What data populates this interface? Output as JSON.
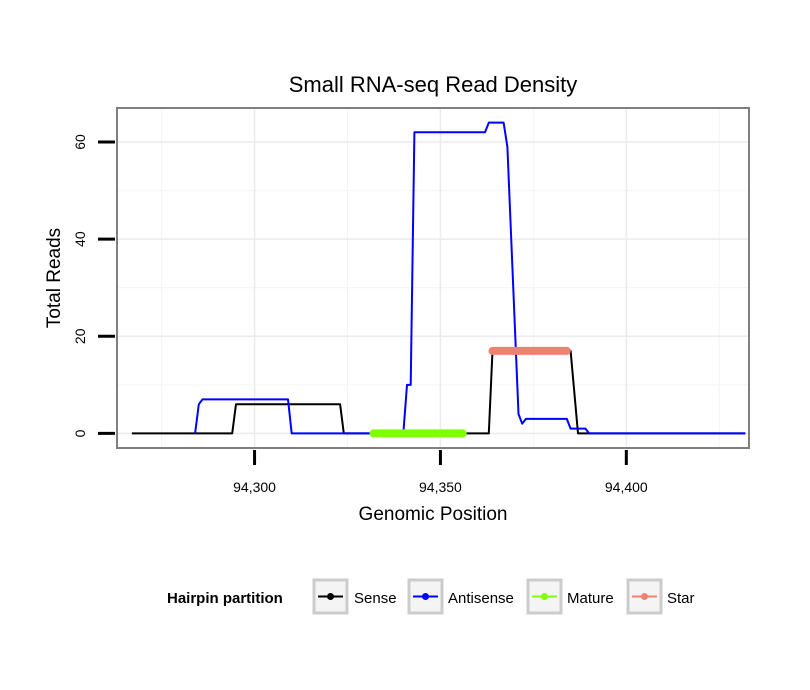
{
  "chart_data": {
    "type": "line",
    "title": "Small RNA-seq Read Density",
    "xlabel": "Genomic Position",
    "ylabel": "Total Reads",
    "xlim": [
      94263,
      94433
    ],
    "ylim": [
      -3,
      67
    ],
    "x_ticks": [
      94300,
      94350,
      94400
    ],
    "x_tick_labels": [
      "94,300",
      "94,350",
      "94,400"
    ],
    "y_ticks": [
      0,
      20,
      40,
      60
    ],
    "y_tick_labels": [
      "0",
      "20",
      "40",
      "60"
    ],
    "grid": true,
    "legend": {
      "title": "Hairpin partition",
      "position": "bottom",
      "entries": [
        {
          "label": "Sense",
          "color": "#000000"
        },
        {
          "label": "Antisense",
          "color": "#0000ff"
        },
        {
          "label": "Mature",
          "color": "#7fff00"
        },
        {
          "label": "Star",
          "color": "#f08070"
        }
      ]
    },
    "series": [
      {
        "name": "Sense",
        "color": "#000000",
        "x": [
          94267,
          94294,
          94295,
          94323,
          94324,
          94363,
          94364,
          94385,
          94387,
          94432
        ],
        "y": [
          0,
          0,
          6,
          6,
          0,
          0,
          17,
          17,
          0,
          0
        ]
      },
      {
        "name": "Antisense",
        "color": "#0000ff",
        "x": [
          94284,
          94285,
          94286,
          94309,
          94310,
          94326,
          94340,
          94341,
          94342,
          94343,
          94344,
          94362,
          94363,
          94367,
          94368,
          94371,
          94372,
          94373,
          94374,
          94384,
          94385,
          94389,
          94390,
          94395,
          94396,
          94432
        ],
        "y": [
          0,
          6,
          7,
          7,
          0,
          0,
          0,
          10,
          10,
          62,
          62,
          62,
          64,
          64,
          59,
          4,
          2,
          3,
          3,
          3,
          1,
          1,
          0,
          0,
          0,
          0
        ]
      },
      {
        "name": "Mature",
        "color": "#7fff00",
        "x": [
          94332,
          94356
        ],
        "y": [
          0,
          0
        ]
      },
      {
        "name": "Star",
        "color": "#f08070",
        "x": [
          94364,
          94384
        ],
        "y": [
          17,
          17
        ]
      }
    ]
  }
}
